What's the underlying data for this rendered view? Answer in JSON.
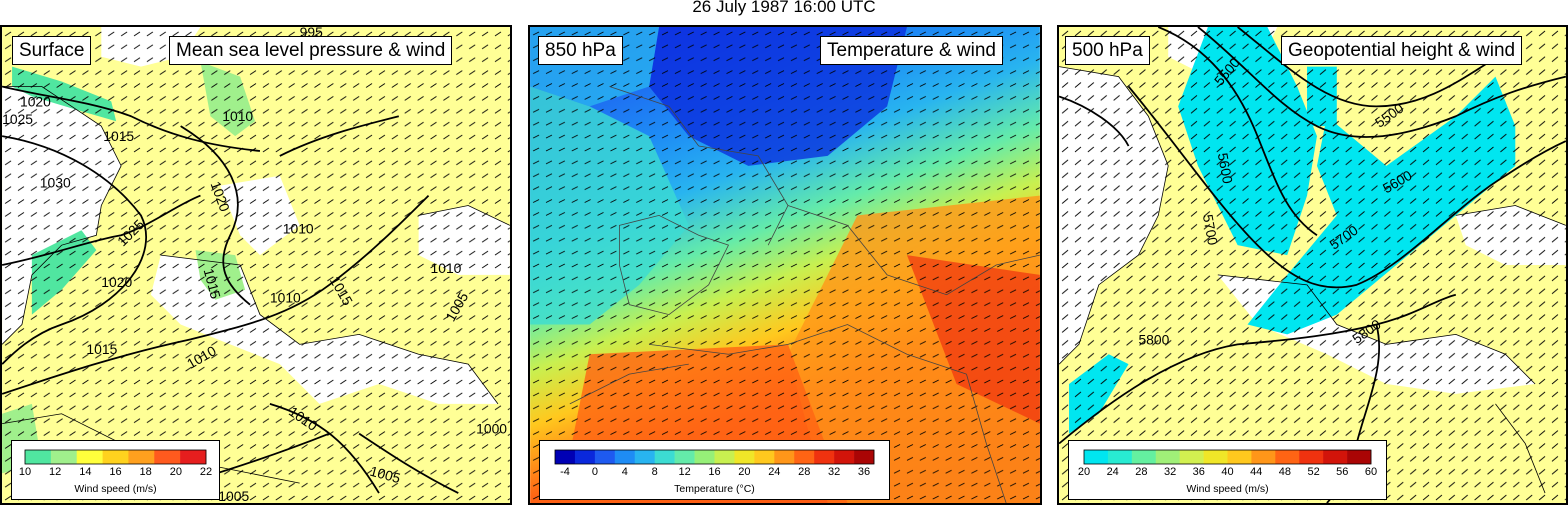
{
  "figure_title": "26 July 1987 16:00 UTC",
  "panels": [
    {
      "level": "Surface",
      "field": "Mean sea level pressure & wind",
      "contour_labels": [
        "1020",
        "1025",
        "1015",
        "1010",
        "1030",
        "1020",
        "1010",
        "1025",
        "1015",
        "1020",
        "1010",
        "1015",
        "1010",
        "1005",
        "1010",
        "1005",
        "1005",
        "1010",
        "1015",
        "995",
        "1000"
      ],
      "legend": {
        "caption": "Wind speed (m/s)",
        "ticks": [
          "10",
          "12",
          "14",
          "16",
          "18",
          "20",
          "22"
        ],
        "colors": [
          "#50e6a0",
          "#a0f08c",
          "#ffff3c",
          "#ffd21e",
          "#ffa01e",
          "#ff5a1e",
          "#e61e1e"
        ]
      }
    },
    {
      "level": "850 hPa",
      "field": "Temperature & wind",
      "legend": {
        "caption": "Temperature (°C)",
        "ticks": [
          "-4",
          "0",
          "4",
          "8",
          "12",
          "16",
          "20",
          "24",
          "28",
          "32",
          "36"
        ],
        "colors": [
          "#0000b4",
          "#0a28dc",
          "#1e5af0",
          "#1e8cf5",
          "#28b4f0",
          "#3cdcd2",
          "#64ebaa",
          "#96f078",
          "#c8f050",
          "#f0e628",
          "#ffc81e",
          "#ff9619",
          "#ff6414",
          "#f0320f",
          "#d2140a",
          "#aa0505"
        ]
      }
    },
    {
      "level": "500 hPa",
      "field": "Geopotential height & wind",
      "contour_labels": [
        "5500",
        "5600",
        "5700",
        "5500",
        "5600",
        "5700",
        "5800",
        "5800"
      ],
      "legend": {
        "caption": "Wind speed (m/s)",
        "ticks": [
          "20",
          "24",
          "28",
          "32",
          "36",
          "40",
          "44",
          "48",
          "52",
          "56",
          "60"
        ],
        "colors": [
          "#00e6f0",
          "#28ebd2",
          "#64f0a0",
          "#a0f078",
          "#d2f050",
          "#f0e628",
          "#ffc81e",
          "#ff9619",
          "#ff6414",
          "#f0320f",
          "#d2140a",
          "#aa0505"
        ]
      }
    }
  ]
}
